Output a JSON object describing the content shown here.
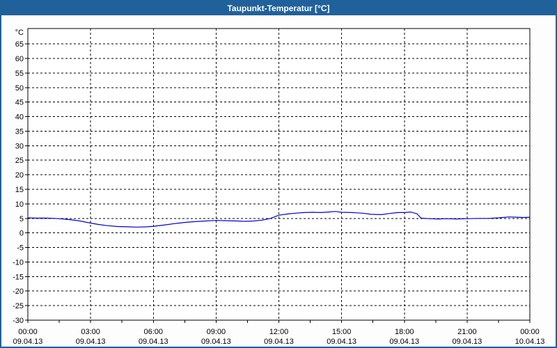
{
  "window": {
    "title": "Taupunkt-Temperatur [°C]"
  },
  "colors": {
    "titlebar_bg": "#20619b",
    "title_text": "#ffffff",
    "frame_border": "#20619b",
    "chart_bg": "#fdfdfd",
    "plot_bg": "#ffffff",
    "plot_border": "#000000",
    "gridline": "#000000",
    "tick": "#000000",
    "label_text": "#000000",
    "series_line": "#0000cc"
  },
  "chart_data": {
    "type": "line",
    "title": "Taupunkt-Temperatur [°C]",
    "y_unit_label": "°C",
    "ylim": [
      -30,
      70.3
    ],
    "y_tick_step": 5,
    "y_tick_labels": [
      65,
      60,
      55,
      50,
      45,
      40,
      35,
      30,
      25,
      20,
      15,
      10,
      5,
      0,
      -5,
      -10,
      -15,
      -20,
      -25,
      -30
    ],
    "x_hours_range": [
      0,
      24
    ],
    "x_minor_tick_step_hours": 1.5,
    "grid": "dashed",
    "legend": "none",
    "x_ticks": [
      {
        "hour": 0,
        "time": "00:00",
        "date": "09.04.13"
      },
      {
        "hour": 3,
        "time": "03:00",
        "date": "09.04.13"
      },
      {
        "hour": 6,
        "time": "06:00",
        "date": "09.04.13"
      },
      {
        "hour": 9,
        "time": "09:00",
        "date": "09.04.13"
      },
      {
        "hour": 12,
        "time": "12:00",
        "date": "09.04.13"
      },
      {
        "hour": 15,
        "time": "15:00",
        "date": "09.04.13"
      },
      {
        "hour": 18,
        "time": "18:00",
        "date": "09.04.13"
      },
      {
        "hour": 21,
        "time": "21:00",
        "date": "09.04.13"
      },
      {
        "hour": 24,
        "time": "00:00",
        "date": "10.04.13"
      }
    ],
    "series": [
      {
        "name": "Taupunkt-Temperatur",
        "color": "#0000cc",
        "points": [
          [
            0.0,
            5.2
          ],
          [
            0.4,
            5.1
          ],
          [
            0.9,
            5.1
          ],
          [
            1.3,
            5.0
          ],
          [
            1.7,
            4.8
          ],
          [
            2.1,
            4.5
          ],
          [
            2.5,
            4.1
          ],
          [
            3.0,
            3.4
          ],
          [
            3.4,
            2.9
          ],
          [
            3.8,
            2.5
          ],
          [
            4.3,
            2.2
          ],
          [
            4.8,
            2.1
          ],
          [
            5.2,
            2.0
          ],
          [
            5.7,
            2.1
          ],
          [
            6.0,
            2.3
          ],
          [
            6.5,
            2.7
          ],
          [
            7.0,
            3.2
          ],
          [
            7.5,
            3.6
          ],
          [
            8.0,
            3.9
          ],
          [
            8.5,
            4.1
          ],
          [
            9.0,
            4.3
          ],
          [
            9.5,
            4.2
          ],
          [
            10.0,
            4.1
          ],
          [
            10.4,
            4.0
          ],
          [
            10.8,
            4.1
          ],
          [
            11.2,
            4.4
          ],
          [
            11.6,
            5.0
          ],
          [
            12.0,
            6.1
          ],
          [
            12.4,
            6.5
          ],
          [
            12.8,
            6.8
          ],
          [
            13.2,
            7.0
          ],
          [
            13.6,
            7.1
          ],
          [
            14.0,
            7.0
          ],
          [
            14.4,
            7.2
          ],
          [
            14.7,
            7.4
          ],
          [
            15.0,
            7.1
          ],
          [
            15.5,
            7.0
          ],
          [
            16.0,
            6.8
          ],
          [
            16.4,
            6.4
          ],
          [
            16.9,
            6.3
          ],
          [
            17.3,
            6.7
          ],
          [
            17.7,
            7.0
          ],
          [
            18.0,
            7.0
          ],
          [
            18.3,
            7.2
          ],
          [
            18.6,
            6.6
          ],
          [
            18.8,
            5.1
          ],
          [
            19.2,
            4.9
          ],
          [
            19.6,
            4.8
          ],
          [
            20.0,
            4.9
          ],
          [
            20.5,
            4.8
          ],
          [
            21.0,
            4.9
          ],
          [
            21.5,
            5.0
          ],
          [
            22.0,
            5.0
          ],
          [
            22.5,
            5.2
          ],
          [
            23.0,
            5.5
          ],
          [
            23.4,
            5.4
          ],
          [
            23.7,
            5.3
          ],
          [
            24.0,
            5.4
          ]
        ]
      }
    ]
  }
}
